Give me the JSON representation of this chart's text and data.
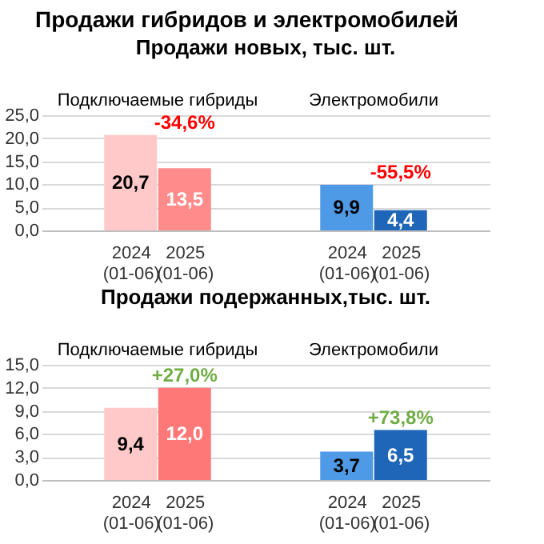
{
  "chart_data": [
    {
      "type": "bar",
      "title": "Продажи гибридов и электромобилей",
      "subtitle": "Продажи новых, тыс. шт.",
      "categories": [
        null,
        "2024 (01-06)",
        "2025 (01-06)",
        null,
        null,
        "2024 (01-06)",
        "2025 (01-06)",
        null
      ],
      "values": [
        null,
        20.7,
        13.5,
        null,
        null,
        9.9,
        4.4,
        null
      ],
      "colors": [
        null,
        "#ffc9c9",
        "#ff8b8b",
        null,
        null,
        "#4f9ae6",
        "#1f66b8",
        null
      ],
      "value_labels": [
        null,
        "20,7",
        "13,5",
        null,
        null,
        "9,9",
        "4,4",
        null
      ],
      "annotations": [
        "Подключаемые гибриды",
        "Электромобили",
        "-34,6%",
        "-55,5%"
      ],
      "ylim": [
        0,
        25
      ],
      "yticks": [
        {
          "value": 0,
          "label": "0,0"
        },
        {
          "value": 5,
          "label": "5,0"
        },
        {
          "value": 10,
          "label": "10,0"
        },
        {
          "value": 15,
          "label": "15,0"
        },
        {
          "value": 20,
          "label": "20,0"
        },
        {
          "value": 25,
          "label": "25,0"
        }
      ],
      "grid": "y"
    },
    {
      "type": "bar",
      "subtitle": "Продажи подержанных,тыс. шт.",
      "categories": [
        null,
        "2024 (01-06)",
        "2025 (01-06)",
        null,
        null,
        "2024 (01-06)",
        "2025 (01-06)",
        null
      ],
      "values": [
        null,
        9.4,
        12.0,
        null,
        null,
        3.7,
        6.5,
        null
      ],
      "colors": [
        null,
        "#ffc9c9",
        "#ff7878",
        null,
        null,
        "#4f9ae6",
        "#1f66b8",
        null
      ],
      "value_labels": [
        null,
        "9,4",
        "12,0",
        null,
        null,
        "3,7",
        "6,5",
        null
      ],
      "annotations": [
        "Подключаемые гибриды",
        "Электромобили",
        "+27,0%",
        "+73,8%"
      ],
      "ylim": [
        0,
        15
      ],
      "yticks": [
        {
          "value": 0,
          "label": "0,0"
        },
        {
          "value": 3,
          "label": "3,0"
        },
        {
          "value": 6,
          "label": "6,0"
        },
        {
          "value": 9,
          "label": "9,0"
        },
        {
          "value": 12,
          "label": "12,0"
        },
        {
          "value": 15,
          "label": "15,0"
        }
      ],
      "grid": "y"
    }
  ]
}
